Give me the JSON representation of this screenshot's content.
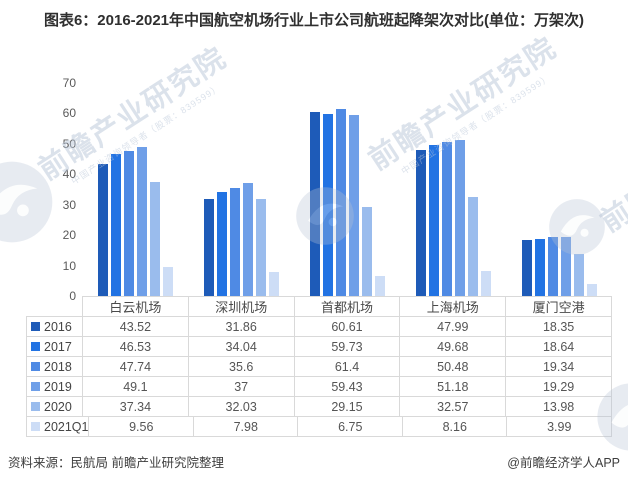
{
  "title": "图表6：2016-2021年中国航空机场行业上市公司航班起降架次对比(单位：万架次)",
  "footer": {
    "source_note": "资料来源：民航局 前瞻产业研究院整理",
    "credit": "@前瞻经济学人APP"
  },
  "watermark": {
    "main": "前瞻产业研究院",
    "sub": "中国产业咨询领导者（股票：839599）"
  },
  "chart_data": {
    "type": "bar",
    "title": "2016-2021年中国航空机场行业上市公司航班起降架次对比",
    "unit": "万架次",
    "categories": [
      "白云机场",
      "深圳机场",
      "首都机场",
      "上海机场",
      "厦门空港"
    ],
    "series": [
      {
        "name": "2016",
        "color": "#1e5bb8",
        "values": [
          43.52,
          31.86,
          60.61,
          47.99,
          18.35
        ]
      },
      {
        "name": "2017",
        "color": "#2273e3",
        "values": [
          46.53,
          34.04,
          59.73,
          49.68,
          18.64
        ]
      },
      {
        "name": "2018",
        "color": "#4f8ae4",
        "values": [
          47.74,
          35.6,
          61.4,
          50.48,
          19.34
        ]
      },
      {
        "name": "2019",
        "color": "#6f9fe8",
        "values": [
          49.1,
          37,
          59.43,
          51.18,
          19.29
        ]
      },
      {
        "name": "2020",
        "color": "#9abced",
        "values": [
          37.34,
          32.03,
          29.15,
          32.57,
          13.98
        ]
      },
      {
        "name": "2021Q1",
        "color": "#cdddf6",
        "values": [
          9.56,
          7.98,
          6.75,
          8.16,
          3.99
        ]
      }
    ],
    "y_axis": {
      "min": 0,
      "max": 70,
      "tick_step": 10,
      "ticks": [
        0,
        10,
        20,
        30,
        40,
        50,
        60,
        70
      ]
    },
    "grid": false,
    "legend_position": "table-left-column"
  }
}
